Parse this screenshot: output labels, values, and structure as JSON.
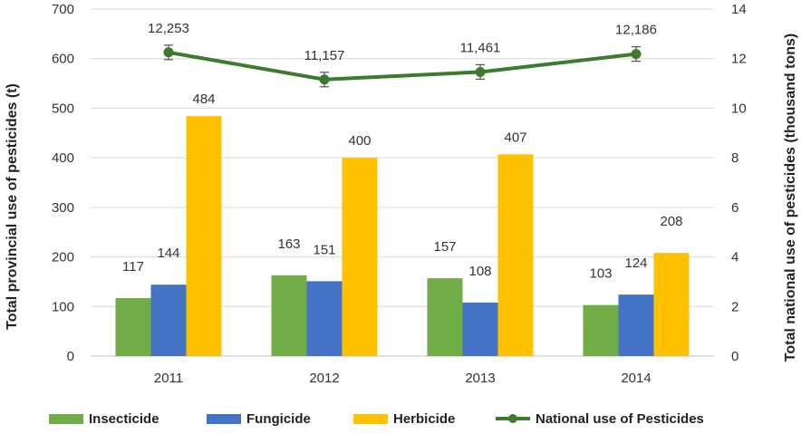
{
  "chart_data": {
    "type": "bar",
    "categories": [
      "2011",
      "2012",
      "2013",
      "2014"
    ],
    "series": [
      {
        "name": "Insecticide",
        "type": "bar",
        "axis": "left",
        "color": "#70ad47",
        "values": [
          117,
          163,
          157,
          103
        ],
        "labels": [
          "117",
          "163",
          "157",
          "103"
        ]
      },
      {
        "name": "Fungicide",
        "type": "bar",
        "axis": "left",
        "color": "#4472c4",
        "values": [
          144,
          151,
          108,
          124
        ],
        "labels": [
          "144",
          "151",
          "108",
          "124"
        ]
      },
      {
        "name": "Herbicide",
        "type": "bar",
        "axis": "left",
        "color": "#ffc000",
        "values": [
          484,
          400,
          407,
          208
        ],
        "labels": [
          "484",
          "400",
          "407",
          "208"
        ]
      },
      {
        "name": "National use of Pesticides",
        "type": "line",
        "axis": "right",
        "color": "#3d7a2e",
        "values": [
          12.253,
          11.157,
          11.461,
          12.186
        ],
        "labels": [
          "12,253",
          "11,157",
          "11,461",
          "12,186"
        ],
        "error_bars": true
      }
    ],
    "ylabel": "Total provincial use of pesticides (t)",
    "y2label": "Total national use of pesticides (thousand tons)",
    "ylim": [
      0,
      700
    ],
    "y2lim": [
      0,
      14
    ],
    "yticks": [
      "0",
      "100",
      "200",
      "300",
      "400",
      "500",
      "600",
      "700"
    ],
    "y2ticks": [
      "0",
      "2",
      "4",
      "6",
      "8",
      "10",
      "12",
      "14"
    ],
    "grid": true,
    "legend_position": "bottom"
  }
}
